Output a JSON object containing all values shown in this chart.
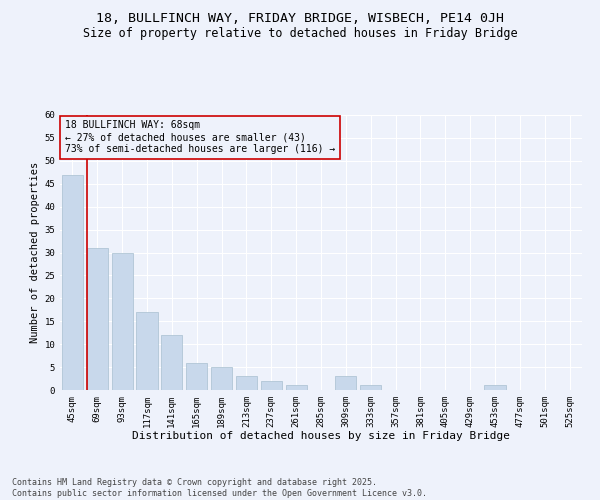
{
  "title1": "18, BULLFINCH WAY, FRIDAY BRIDGE, WISBECH, PE14 0JH",
  "title2": "Size of property relative to detached houses in Friday Bridge",
  "xlabel": "Distribution of detached houses by size in Friday Bridge",
  "ylabel": "Number of detached properties",
  "categories": [
    "45sqm",
    "69sqm",
    "93sqm",
    "117sqm",
    "141sqm",
    "165sqm",
    "189sqm",
    "213sqm",
    "237sqm",
    "261sqm",
    "285sqm",
    "309sqm",
    "333sqm",
    "357sqm",
    "381sqm",
    "405sqm",
    "429sqm",
    "453sqm",
    "477sqm",
    "501sqm",
    "525sqm"
  ],
  "values": [
    47,
    31,
    30,
    17,
    12,
    6,
    5,
    3,
    2,
    1,
    0,
    3,
    1,
    0,
    0,
    0,
    0,
    1,
    0,
    0,
    0
  ],
  "bar_color": "#c8d8eb",
  "bar_edgecolor": "#a8bfd0",
  "vline_color": "#cc0000",
  "vline_x_index": 1,
  "annotation_box_text": "18 BULLFINCH WAY: 68sqm\n← 27% of detached houses are smaller (43)\n73% of semi-detached houses are larger (116) →",
  "annotation_box_edgecolor": "#cc0000",
  "ylim": [
    0,
    60
  ],
  "yticks": [
    0,
    5,
    10,
    15,
    20,
    25,
    30,
    35,
    40,
    45,
    50,
    55,
    60
  ],
  "background_color": "#eef2fb",
  "grid_color": "#ffffff",
  "footer": "Contains HM Land Registry data © Crown copyright and database right 2025.\nContains public sector information licensed under the Open Government Licence v3.0.",
  "title1_fontsize": 9.5,
  "title2_fontsize": 8.5,
  "xlabel_fontsize": 8,
  "ylabel_fontsize": 7.5,
  "tick_fontsize": 6.5,
  "ann_fontsize": 7,
  "footer_fontsize": 6
}
